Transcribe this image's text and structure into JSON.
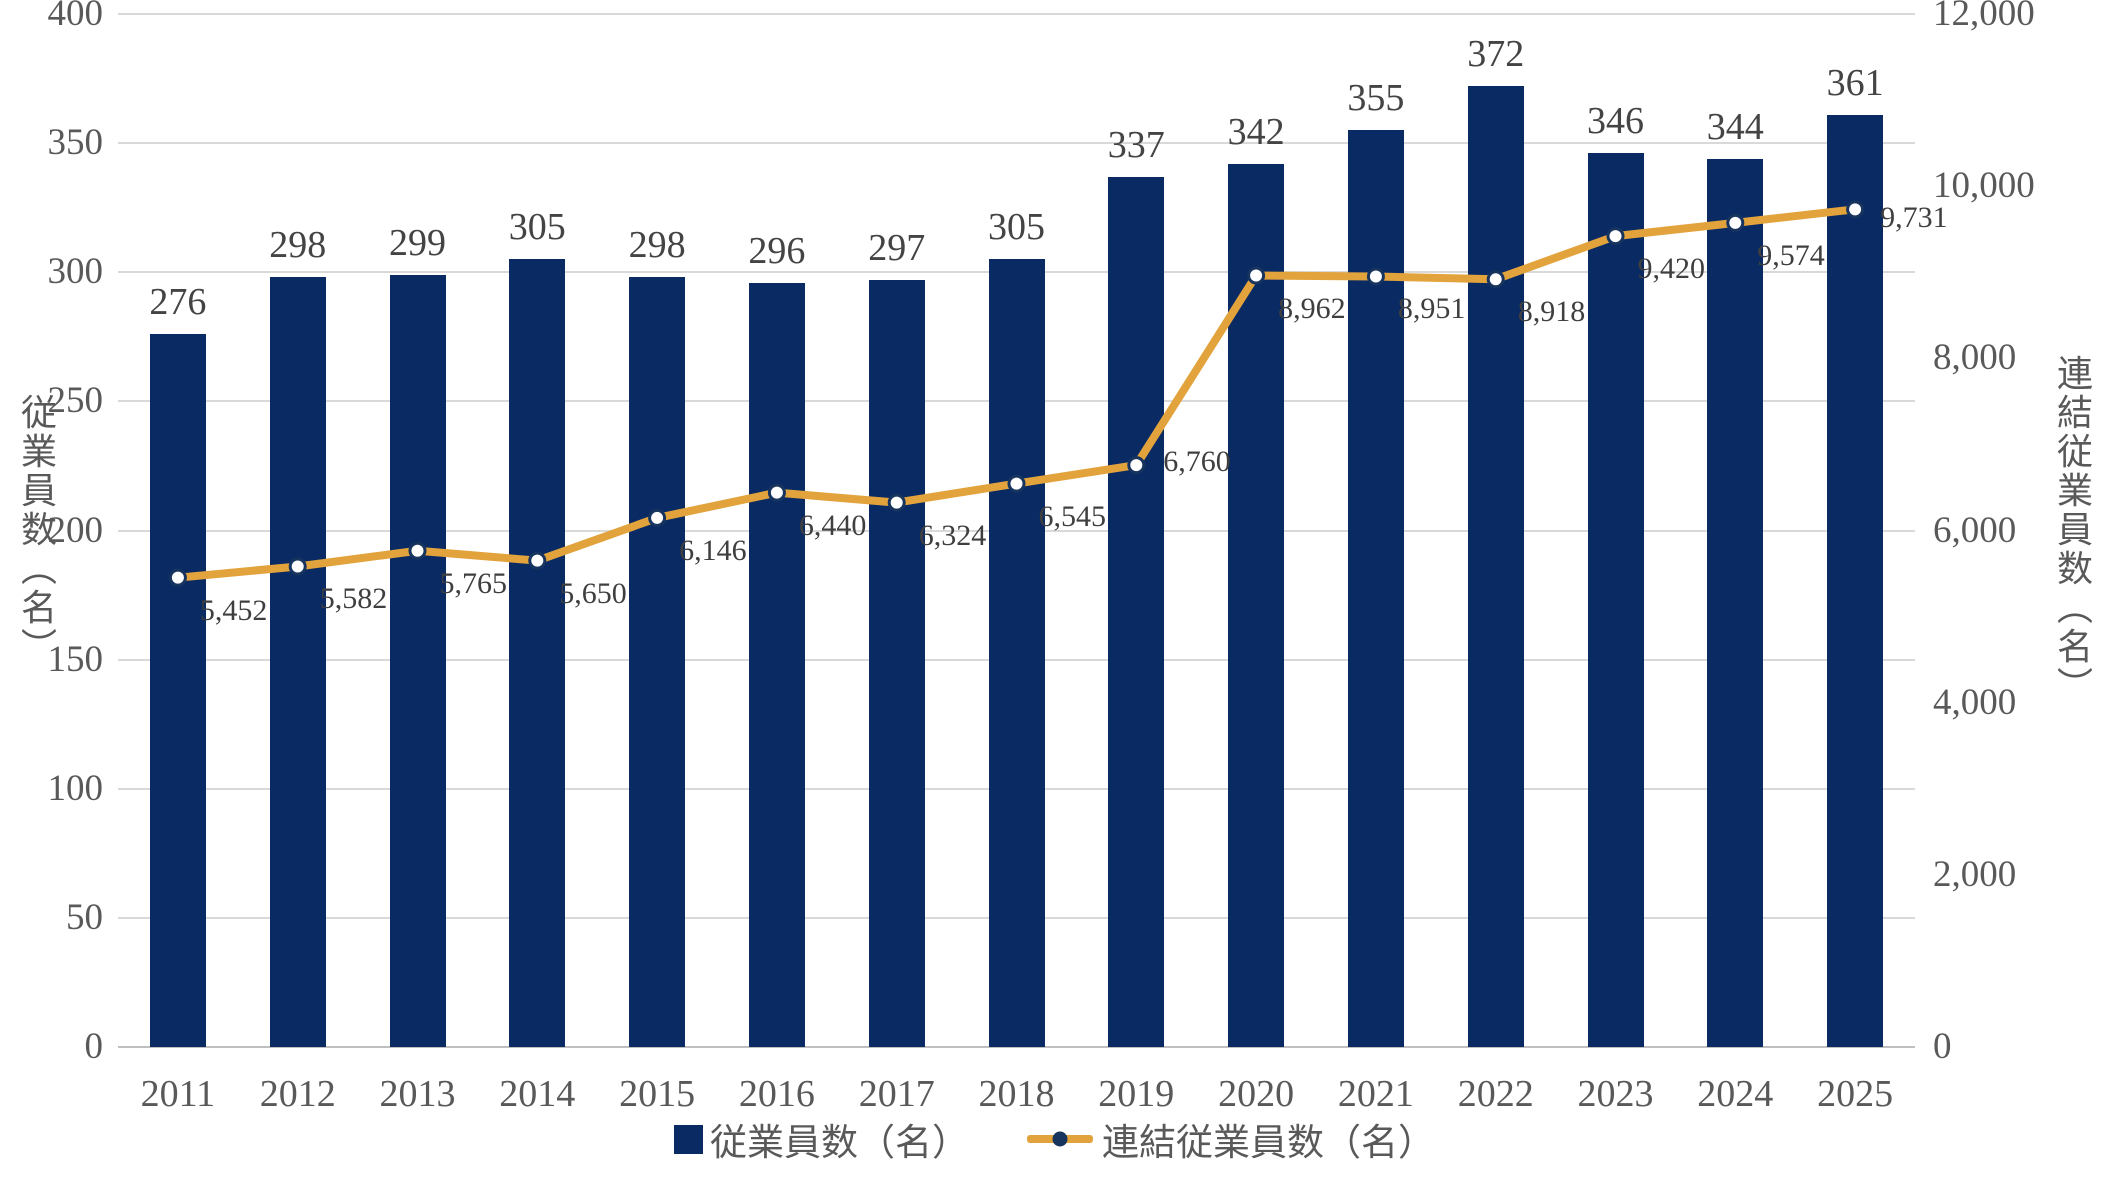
{
  "chart_data": {
    "type": "bar+line",
    "categories": [
      "2011",
      "2012",
      "2013",
      "2014",
      "2015",
      "2016",
      "2017",
      "2018",
      "2019",
      "2020",
      "2021",
      "2022",
      "2023",
      "2024",
      "2025"
    ],
    "series": [
      {
        "name": "従業員数（名）",
        "type": "bar",
        "axis": "left",
        "color": "#0A2A63",
        "values": [
          276,
          298,
          299,
          305,
          298,
          296,
          297,
          305,
          337,
          342,
          355,
          372,
          346,
          344,
          361
        ],
        "labels": [
          "276",
          "298",
          "299",
          "305",
          "298",
          "296",
          "297",
          "305",
          "337",
          "342",
          "355",
          "372",
          "346",
          "344",
          "361"
        ]
      },
      {
        "name": "連結従業員数（名）",
        "type": "line",
        "axis": "right",
        "color": "#E2A33C",
        "values": [
          5452,
          5582,
          5765,
          5650,
          6146,
          6440,
          6324,
          6545,
          6760,
          8962,
          8951,
          8918,
          9420,
          9574,
          9731
        ],
        "labels": [
          "5,452",
          "5,582",
          "5,765",
          "5,650",
          "6,146",
          "6,440",
          "6,324",
          "6,545",
          "6,760",
          "8,962",
          "8,951",
          "8,918",
          "9,420",
          "9,574",
          "9,731"
        ]
      }
    ],
    "left_axis": {
      "label": "従業員数（名）",
      "min": 0,
      "max": 400,
      "step": 50,
      "ticks": [
        "400",
        "350",
        "300",
        "250",
        "200",
        "150",
        "100",
        "50",
        "0"
      ]
    },
    "right_axis": {
      "label": "連結従業員数（名）",
      "min": 0,
      "max": 12000,
      "step": 2000,
      "ticks": [
        "12,000",
        "10,000",
        "8,000",
        "6,000",
        "4,000",
        "2,000",
        "0"
      ]
    },
    "grid": true,
    "legend_position": "bottom",
    "legend": [
      "従業員数（名）",
      "連結従業員数（名）"
    ]
  },
  "colors": {
    "bar": "#0A2A63",
    "line": "#E2A33C",
    "marker_fill": "#FFFFFF",
    "marker_stroke": "#17345F",
    "grid": "#D9D9D9",
    "axis_line": "#BFBFBF",
    "tick_text": "#595959",
    "data_label": "#404040"
  }
}
